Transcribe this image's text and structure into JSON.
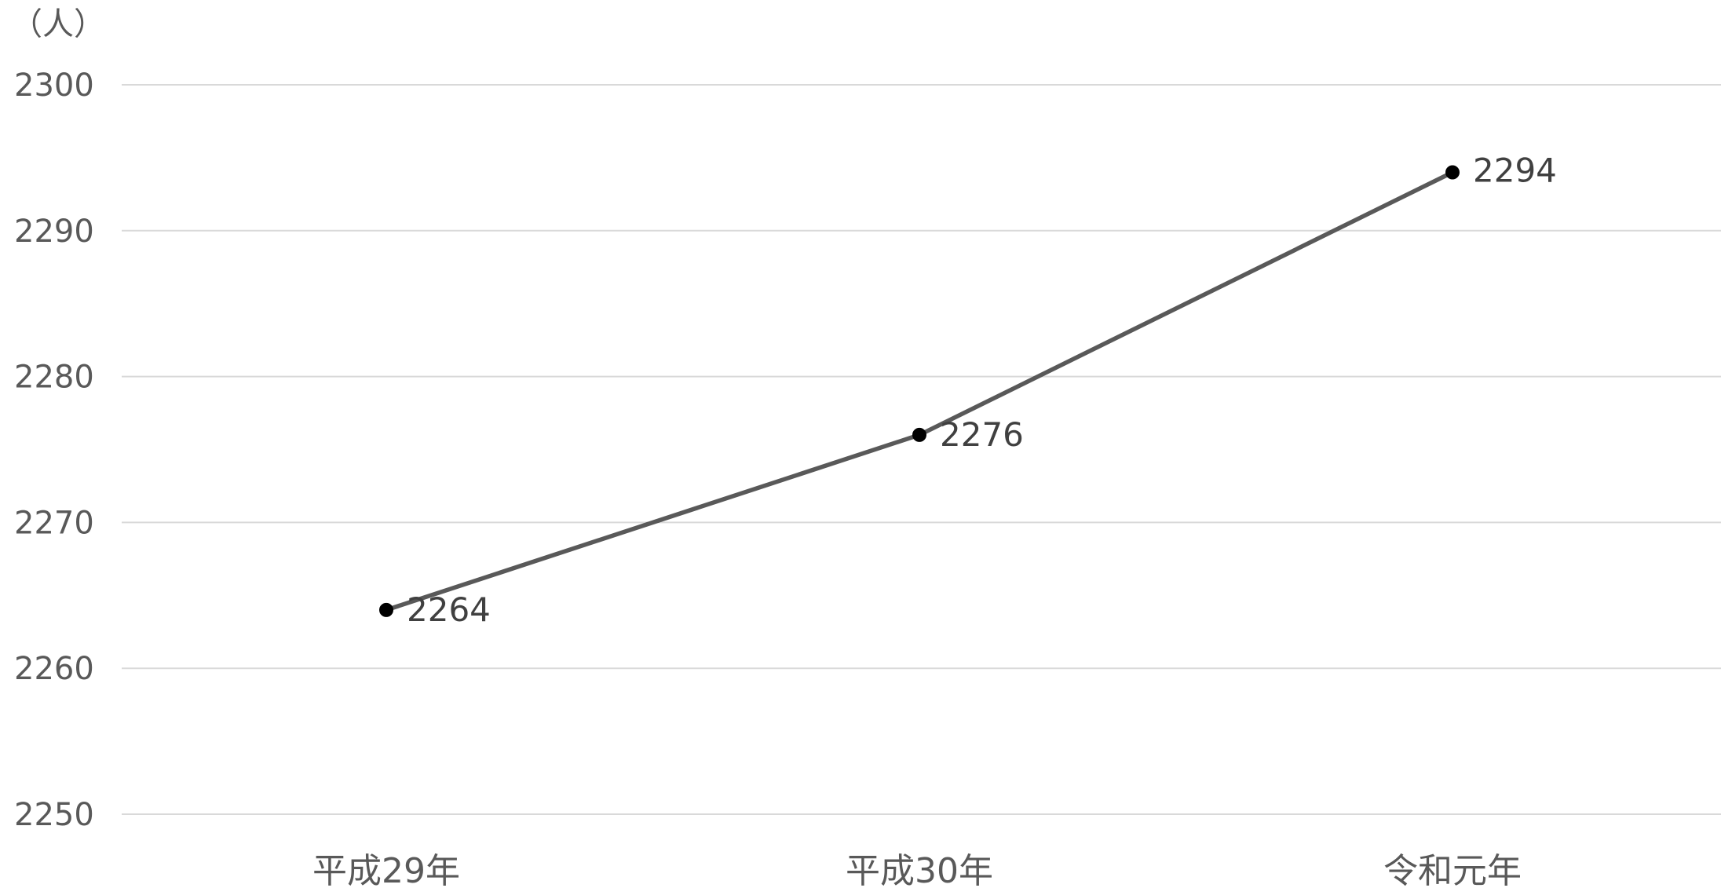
{
  "chart_data": {
    "type": "line",
    "title": "",
    "xlabel": "",
    "ylabel": "（人）",
    "categories": [
      "平成29年",
      "平成30年",
      "令和元年"
    ],
    "series": [
      {
        "values": [
          2264,
          2276,
          2294
        ],
        "color": "#595959",
        "marker_color": "#000000"
      }
    ],
    "ylim": [
      2250,
      2300
    ],
    "yticks": [
      2300,
      2290,
      2280,
      2270,
      2260,
      2250
    ],
    "grid": true,
    "data_labels": true,
    "legend": "none"
  }
}
